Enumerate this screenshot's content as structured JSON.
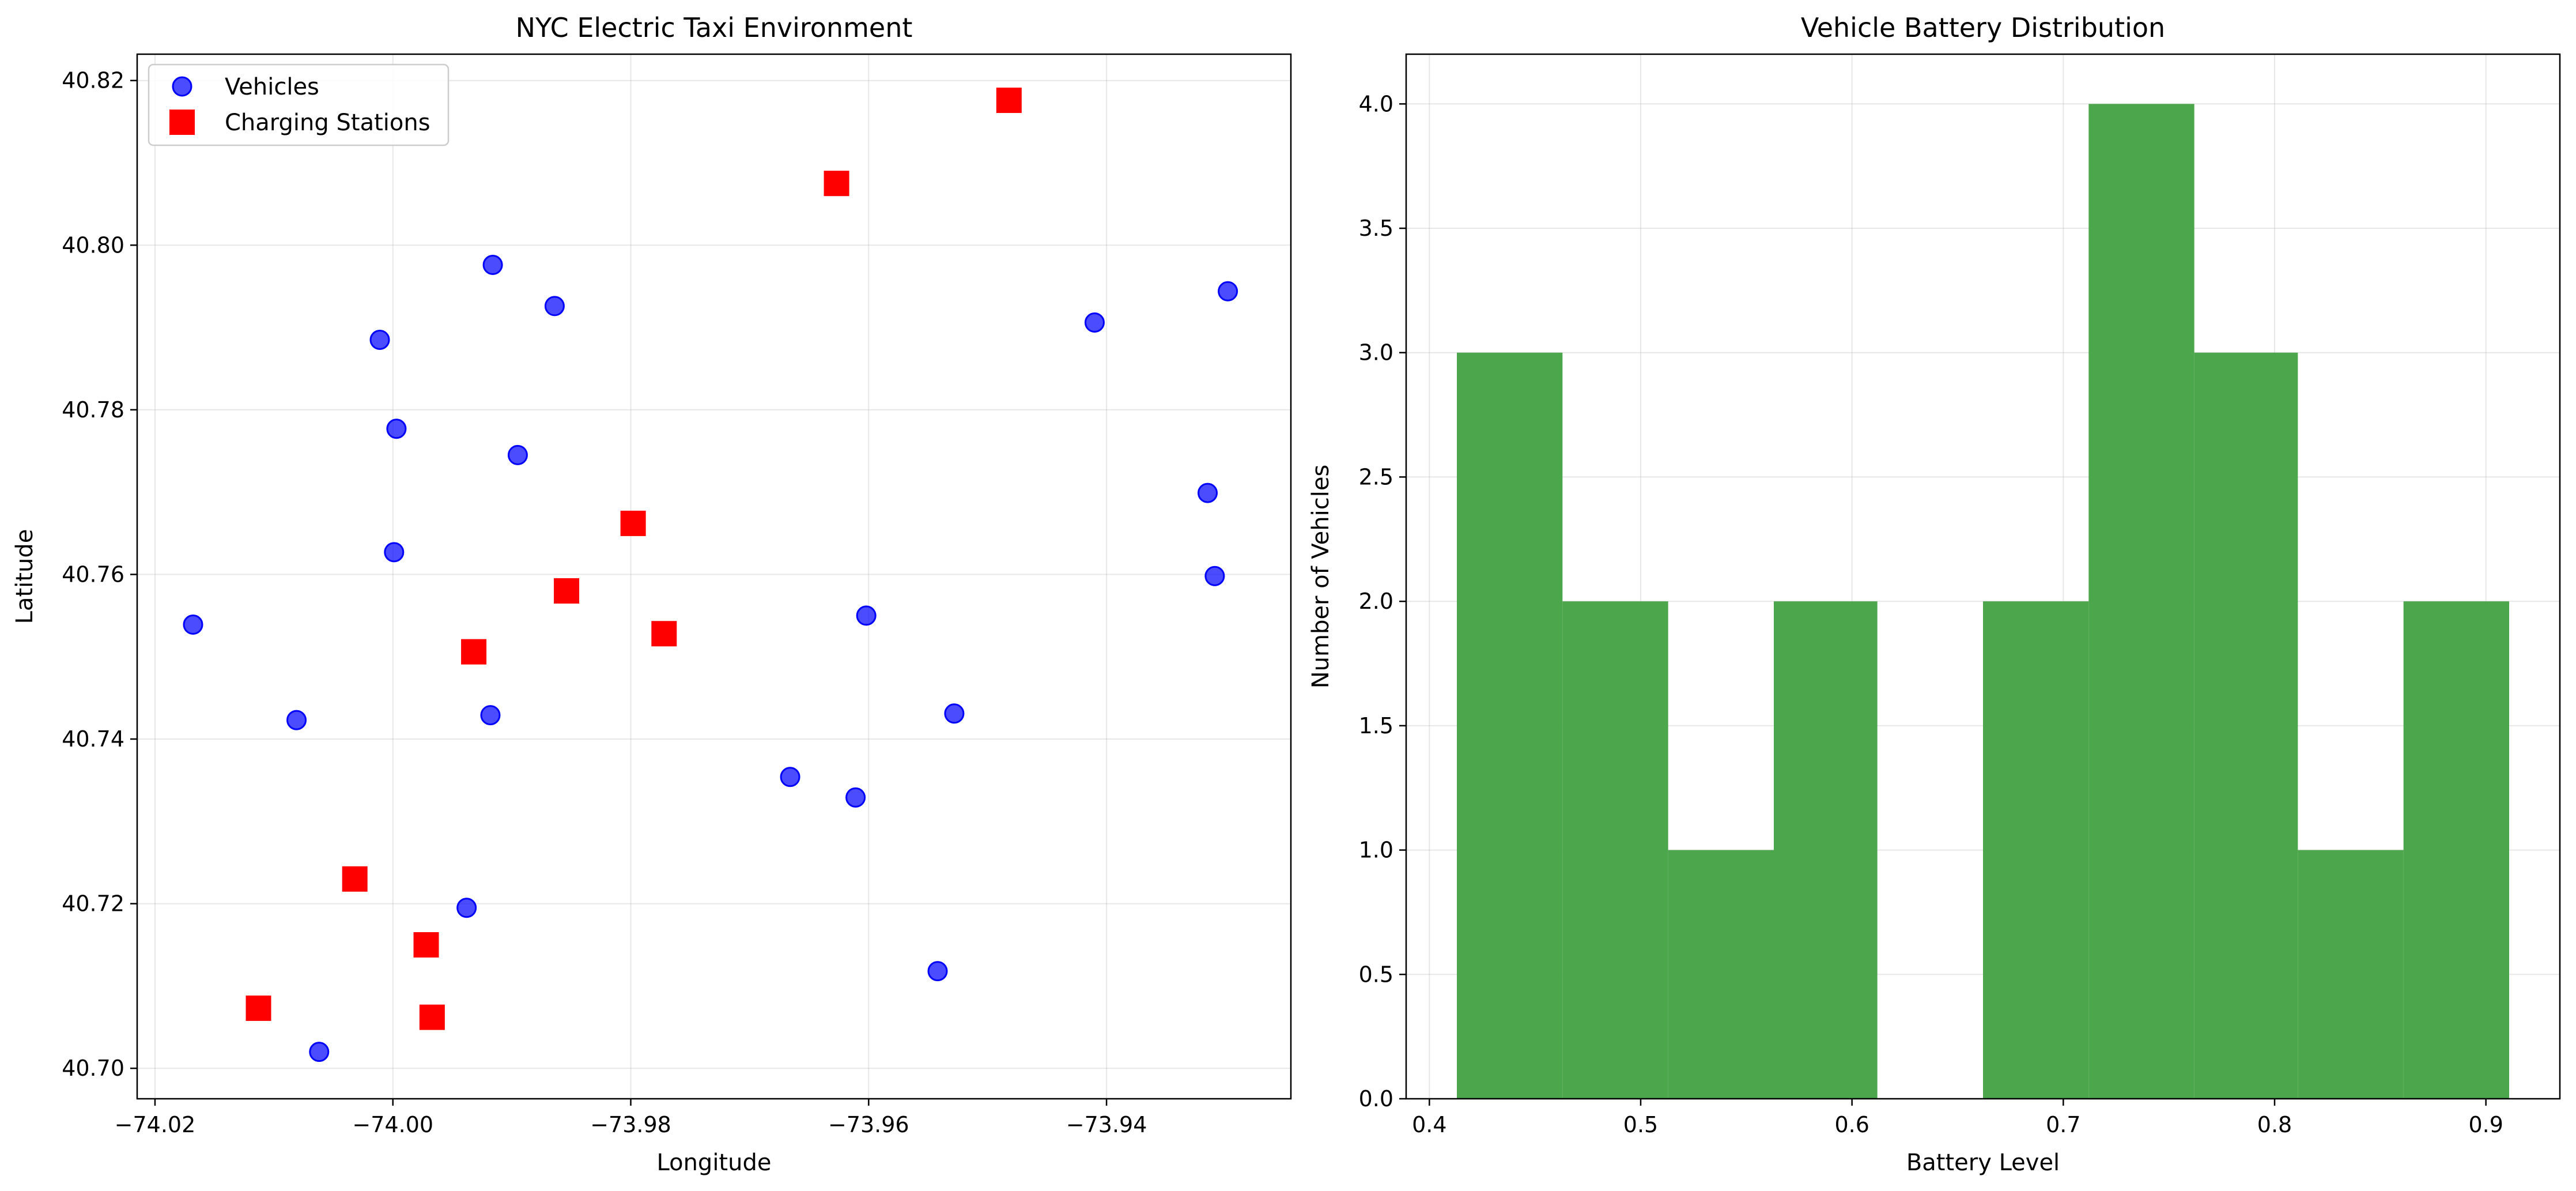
{
  "figure": {
    "chart_data": [
      {
        "type": "scatter",
        "title": "NYC Electric Taxi Environment",
        "xlabel": "Longitude",
        "ylabel": "Latitude",
        "xlim": [
          -74.0215,
          -73.9245
        ],
        "ylim": [
          40.6963,
          40.8232
        ],
        "xticks": [
          -74.02,
          -74.0,
          -73.98,
          -73.96,
          -73.94
        ],
        "xtick_labels": [
          "−74.02",
          "−74.00",
          "−73.98",
          "−73.96",
          "−73.94"
        ],
        "yticks": [
          40.7,
          40.72,
          40.74,
          40.76,
          40.78,
          40.8,
          40.82
        ],
        "ytick_labels": [
          "40.70",
          "40.72",
          "40.74",
          "40.76",
          "40.78",
          "40.80",
          "40.82"
        ],
        "grid": true,
        "legend_position": "upper-left",
        "series": [
          {
            "name": "Vehicles",
            "marker": "circle",
            "color": "#0000ff",
            "points": [
              [
                -74.0168,
                40.7539
              ],
              [
                -74.0081,
                40.7423
              ],
              [
                -74.0062,
                40.702
              ],
              [
                -74.0011,
                40.7885
              ],
              [
                -73.9997,
                40.7777
              ],
              [
                -73.9999,
                40.7627
              ],
              [
                -73.9916,
                40.7976
              ],
              [
                -73.9895,
                40.7745
              ],
              [
                -73.9918,
                40.7429
              ],
              [
                -73.9938,
                40.7195
              ],
              [
                -73.9864,
                40.7926
              ],
              [
                -73.9666,
                40.7354
              ],
              [
                -73.9611,
                40.7329
              ],
              [
                -73.9602,
                40.755
              ],
              [
                -73.9528,
                40.7431
              ],
              [
                -73.9542,
                40.7118
              ],
              [
                -73.941,
                40.7906
              ],
              [
                -73.9315,
                40.7699
              ],
              [
                -73.9309,
                40.7598
              ],
              [
                -73.9298,
                40.7944
              ]
            ]
          },
          {
            "name": "Charging Stations",
            "marker": "square",
            "color": "#ff0000",
            "points": [
              [
                -74.0113,
                40.7073
              ],
              [
                -74.0032,
                40.723
              ],
              [
                -73.9972,
                40.715
              ],
              [
                -73.9967,
                40.7062
              ],
              [
                -73.9932,
                40.7506
              ],
              [
                -73.9854,
                40.758
              ],
              [
                -73.9798,
                40.7662
              ],
              [
                -73.9772,
                40.7528
              ],
              [
                -73.9627,
                40.8075
              ],
              [
                -73.9482,
                40.8176
              ]
            ]
          }
        ]
      },
      {
        "type": "bar",
        "subtype": "histogram",
        "title": "Vehicle Battery Distribution",
        "xlabel": "Battery Level",
        "ylabel": "Number of Vehicles",
        "xlim": [
          0.389,
          0.935
        ],
        "ylim": [
          0,
          4.2
        ],
        "xticks": [
          0.4,
          0.5,
          0.6,
          0.7,
          0.8,
          0.9
        ],
        "xtick_labels": [
          "0.4",
          "0.5",
          "0.6",
          "0.7",
          "0.8",
          "0.9"
        ],
        "yticks": [
          0.0,
          0.5,
          1.0,
          1.5,
          2.0,
          2.5,
          3.0,
          3.5,
          4.0
        ],
        "ytick_labels": [
          "0.0",
          "0.5",
          "1.0",
          "1.5",
          "2.0",
          "2.5",
          "3.0",
          "3.5",
          "4.0"
        ],
        "grid": true,
        "color": "#4ca64c",
        "bin_edges": [
          0.413,
          0.463,
          0.513,
          0.563,
          0.612,
          0.662,
          0.712,
          0.762,
          0.811,
          0.861,
          0.911
        ],
        "counts": [
          3,
          2,
          1,
          2,
          0,
          2,
          4,
          3,
          1,
          2
        ]
      }
    ]
  }
}
